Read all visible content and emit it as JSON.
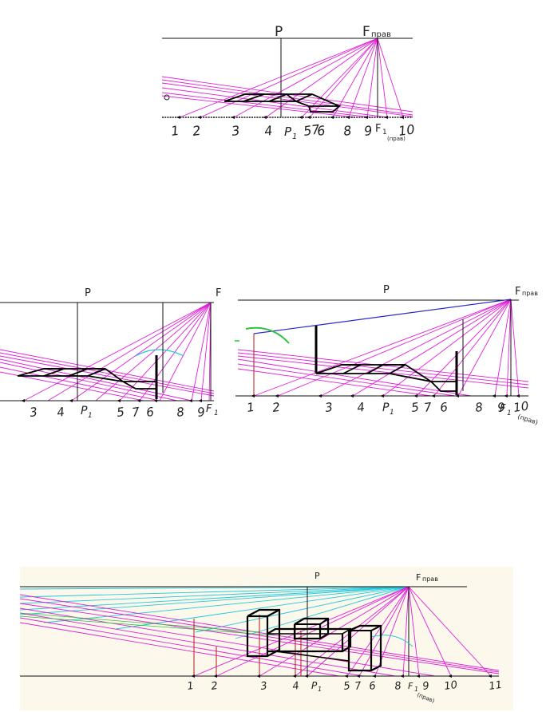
{
  "colors": {
    "ray": "#e020d8",
    "cyan": "#20c8dc",
    "outline": "#000000",
    "horizon": "#000000",
    "ground": "#000000",
    "blue": "#2a2ac8",
    "red": "#b01818",
    "green": "#30c040",
    "panel4_bg": "#fcf8ec"
  },
  "labels": {
    "P": "P",
    "F": "F",
    "F_sub": "прав",
    "P1": "P",
    "P1_sub": "1",
    "F1": "F",
    "F1_sub": "1",
    "F1_note": "(прав)",
    "panel2_F": "F",
    "marker_o": "o"
  },
  "panels": [
    {
      "id": "panel-1",
      "ticks": [
        "1",
        "2",
        "3",
        "4",
        "57",
        "6",
        "8",
        "9",
        "10"
      ]
    },
    {
      "id": "panel-2",
      "ticks": [
        "3",
        "4",
        "5",
        "7",
        "6",
        "8",
        "9"
      ]
    },
    {
      "id": "panel-3",
      "ticks": [
        "1",
        "2",
        "3",
        "4",
        "5",
        "7",
        "6",
        "8",
        "9",
        "10"
      ]
    },
    {
      "id": "panel-4",
      "ticks": [
        "1",
        "2",
        "3",
        "4",
        "5",
        "7",
        "6",
        "8",
        "9",
        "10",
        "11"
      ]
    }
  ]
}
